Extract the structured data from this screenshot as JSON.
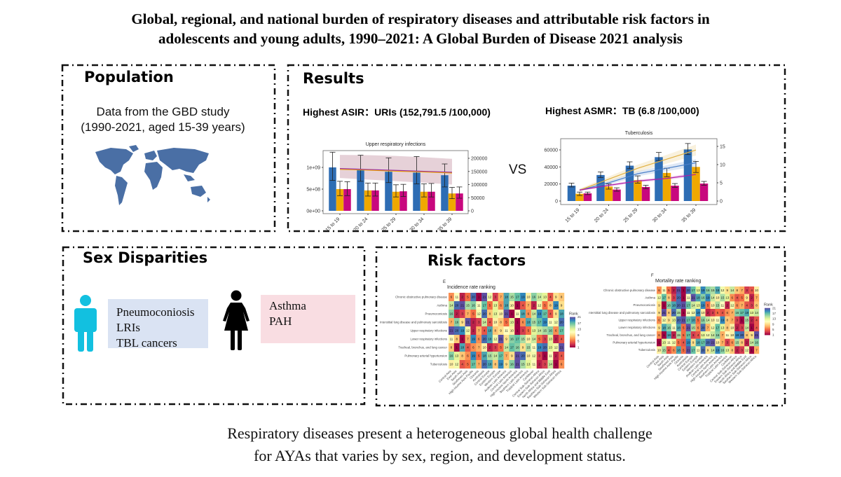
{
  "title": {
    "line1": "Global, regional, and national burden of respiratory diseases and attributable risk factors in",
    "line2": "adolescents and young adults, 1990–2021: A Global Burden of Disease 2021 analysis"
  },
  "population": {
    "heading": "Population",
    "text_line1": "Data from the GBD study",
    "text_line2": "(1990-2021, aged 15-39 years)",
    "map_icon": "world-map-icon"
  },
  "results": {
    "heading": "Results",
    "asir": "Highest ASIR：URIs (152,791.5 /100,000)",
    "asmr": "Highest ASMR：TB (6.8 /100,000)",
    "vs": "VS"
  },
  "sex": {
    "heading": "Sex Disparities",
    "male_icon": "male-person-icon",
    "female_icon": "female-person-icon",
    "male_items": [
      "Pneumoconiosis",
      "LRIs",
      "TBL cancers"
    ],
    "female_items": [
      "Asthma",
      "PAH"
    ]
  },
  "risk": {
    "heading": "Risk factors"
  },
  "conclusion": {
    "line1": "Respiratory diseases present a heterogeneous global health challenge",
    "line2": "for AYAs that varies by sex, region, and development status."
  },
  "colors": {
    "blue": "#2e6db4",
    "orange": "#f0a800",
    "magenta": "#c8087e",
    "male_box": "#dae3f3",
    "female_box": "#f9dde2",
    "male_icon": "#12c0e0",
    "map": "#4a6fa5"
  },
  "chart_data": [
    {
      "type": "bar",
      "title": "Upper respiratory infections",
      "categories": [
        "15 to 19",
        "20 to 24",
        "25 to 29",
        "30 to 34",
        "35 to 39"
      ],
      "left_ticks": [
        {
          "v": 0,
          "label": "0e+00"
        },
        {
          "v": 500000000,
          "label": "5e+08"
        },
        {
          "v": 1000000000,
          "label": "1e+09"
        }
      ],
      "right_ticks": [
        {
          "v": 0,
          "label": "0"
        },
        {
          "v": 50000,
          "label": "50000"
        },
        {
          "v": 100000,
          "label": "100000"
        },
        {
          "v": 150000,
          "label": "150000"
        },
        {
          "v": 200000,
          "label": "200000"
        }
      ],
      "series": [
        {
          "color": "#2e6db4",
          "values": [
            1000000000,
            950000000,
            900000000,
            880000000,
            820000000
          ],
          "error": [
            [
              700000000,
              1350000000
            ],
            [
              680000000,
              1280000000
            ],
            [
              650000000,
              1220000000
            ],
            [
              620000000,
              1250000000
            ],
            [
              550000000,
              1080000000
            ]
          ]
        },
        {
          "color": "#f0a800",
          "values": [
            500000000,
            470000000,
            440000000,
            440000000,
            400000000
          ],
          "error": [
            [
              350000000,
              680000000
            ],
            [
              340000000,
              640000000
            ],
            [
              320000000,
              600000000
            ],
            [
              320000000,
              620000000
            ],
            [
              280000000,
              540000000
            ]
          ]
        },
        {
          "color": "#c8087e",
          "values": [
            500000000,
            470000000,
            450000000,
            440000000,
            400000000
          ],
          "error": [
            [
              350000000,
              670000000
            ],
            [
              340000000,
              640000000
            ],
            [
              330000000,
              610000000
            ],
            [
              320000000,
              630000000
            ],
            [
              290000000,
              550000000
            ]
          ]
        }
      ],
      "lines_right_axis": [
        {
          "color": "#f0a800",
          "values": [
            158000,
            155000,
            151000,
            148000,
            144000
          ]
        },
        {
          "color": "#9b2fa0",
          "values": [
            161000,
            157500,
            154000,
            150500,
            147000
          ]
        }
      ],
      "band_right_axis": {
        "color": "#c79aa8",
        "upper": [
          213000,
          212000,
          209000,
          204000,
          198000
        ],
        "lower": [
          125000,
          119000,
          113000,
          107000,
          100000
        ]
      }
    },
    {
      "type": "bar",
      "title": "Tuberculosis",
      "categories": [
        "15 to 19",
        "20 to 24",
        "25 to 29",
        "30 to 34",
        "35 to 39"
      ],
      "left_ticks": [
        {
          "v": 0,
          "label": "0"
        },
        {
          "v": 20000,
          "label": "20000"
        },
        {
          "v": 40000,
          "label": "40000"
        },
        {
          "v": 60000,
          "label": "60000"
        }
      ],
      "right_ticks": [
        {
          "v": 0,
          "label": "0"
        },
        {
          "v": 5,
          "label": "5"
        },
        {
          "v": 10,
          "label": "10"
        },
        {
          "v": 15,
          "label": "15"
        }
      ],
      "series": [
        {
          "color": "#2e6db4",
          "values": [
            18000,
            30500,
            41500,
            51500,
            60500
          ],
          "error": [
            [
              16500,
              21000
            ],
            [
              27500,
              34000
            ],
            [
              38000,
              46000
            ],
            [
              47500,
              57000
            ],
            [
              54500,
              67500
            ]
          ]
        },
        {
          "color": "#f0a800",
          "values": [
            8500,
            17000,
            24500,
            33000,
            40000
          ],
          "error": [
            [
              6500,
              10500
            ],
            [
              14000,
              20000
            ],
            [
              21000,
              29500
            ],
            [
              28500,
              38500
            ],
            [
              33500,
              46500
            ]
          ]
        },
        {
          "color": "#c8087e",
          "values": [
            9000,
            13500,
            16500,
            18000,
            20500
          ],
          "error": [
            [
              7500,
              10500
            ],
            [
              11500,
              15500
            ],
            [
              14500,
              18500
            ],
            [
              16000,
              20500
            ],
            [
              18500,
              23000
            ]
          ]
        }
      ],
      "lines_right_axis": [
        {
          "color": "#4a7fc8",
          "values": [
            3,
            5,
            7.5,
            9,
            10.5
          ],
          "band": [
            [
              2.7,
              3.3
            ],
            [
              4.5,
              5.5
            ],
            [
              6.8,
              8.2
            ],
            [
              8.2,
              9.8
            ],
            [
              9.5,
              11.5
            ]
          ]
        },
        {
          "color": "#e0b040",
          "values": [
            3,
            6,
            9,
            11.5,
            14
          ],
          "band": [
            [
              2.6,
              3.4
            ],
            [
              5.3,
              6.7
            ],
            [
              8,
              10
            ],
            [
              10.3,
              12.7
            ],
            [
              12.5,
              15.5
            ]
          ]
        },
        {
          "color": "#b01aa8",
          "values": [
            3,
            4.3,
            5.5,
            6.2,
            7.3
          ],
          "band": [
            [
              2.8,
              3.2
            ],
            [
              4,
              4.6
            ],
            [
              5.1,
              5.9
            ],
            [
              5.8,
              6.6
            ],
            [
              6.8,
              7.8
            ]
          ]
        }
      ]
    },
    {
      "type": "heatmap",
      "panel_label": "E",
      "title": "Incidence rate ranking",
      "legend_title": "Rank",
      "legend_ticks": [
        1,
        5,
        9,
        13,
        17,
        21
      ],
      "rows": [
        "Chronic obstructive pulmonary disease",
        "Asthma",
        "Pneumoconiosis",
        "Interstitial lung disease and pulmonary sarcoidosis",
        "Upper respiratory infections",
        "Lower respiratory infections",
        "Tracheal, bronchus, and lung cancer",
        "Pulmonary arterial hypertension",
        "Tuberculosis"
      ],
      "columns": [
        "Central Asia",
        "East Asia",
        "South Asia",
        "Southeast Asia",
        "High-income Asia Pacific",
        "Oceania",
        "Australasia",
        "Central Europe",
        "Eastern Europe",
        "Western Europe",
        "Andean Latin America",
        "Central Latin America",
        "High-income North America",
        "Southern Latin America",
        "Tropical Latin America",
        "Caribbean",
        "Central Sub-Saharan Africa",
        "Eastern Sub-Saharan Africa",
        "North Africa and Middle East",
        "Southern Sub-Saharan Africa",
        "Western Sub-Saharan Africa"
      ],
      "values": [
        [
          6,
          11,
          2,
          5,
          20,
          1,
          21,
          12,
          3,
          7,
          18,
          15,
          17,
          19,
          10,
          16,
          14,
          13,
          4,
          9,
          8
        ],
        [
          14,
          20,
          21,
          15,
          16,
          11,
          17,
          5,
          13,
          6,
          18,
          10,
          1,
          4,
          7,
          2,
          12,
          5,
          8,
          19,
          9
        ],
        [
          16,
          2,
          3,
          7,
          5,
          12,
          20,
          8,
          13,
          10,
          21,
          1,
          11,
          18,
          6,
          14,
          19,
          17,
          4,
          9,
          18
        ],
        [
          7,
          16,
          9,
          21,
          2,
          3,
          14,
          4,
          10,
          8,
          5,
          13,
          1,
          6,
          18,
          15,
          17,
          19,
          11,
          12,
          20
        ],
        [
          21,
          20,
          19,
          12,
          2,
          7,
          4,
          18,
          8,
          9,
          11,
          10,
          1,
          3,
          5,
          13,
          14,
          15,
          16,
          6,
          17
        ],
        [
          11,
          8,
          1,
          7,
          19,
          6,
          20,
          18,
          12,
          21,
          9,
          16,
          17,
          15,
          10,
          14,
          5,
          3,
          13,
          2,
          4
        ],
        [
          8,
          1,
          18,
          4,
          6,
          7,
          10,
          2,
          3,
          5,
          14,
          17,
          16,
          9,
          15,
          11,
          19,
          20,
          13,
          12,
          21
        ],
        [
          16,
          13,
          8,
          6,
          19,
          5,
          18,
          15,
          14,
          17,
          7,
          9,
          21,
          20,
          10,
          12,
          3,
          1,
          11,
          2,
          4
        ],
        [
          10,
          12,
          4,
          5,
          17,
          7,
          20,
          18,
          8,
          19,
          9,
          16,
          21,
          15,
          13,
          11,
          2,
          3,
          14,
          1,
          6
        ]
      ]
    },
    {
      "type": "heatmap",
      "panel_label": "F",
      "title": "Mortality rate ranking",
      "legend_title": "Rank",
      "legend_ticks": [
        1,
        5,
        9,
        13,
        17,
        21
      ],
      "rows": [
        "Chronic obstructive pulmonary disease",
        "Asthma",
        "Pneumoconiosis",
        "Interstitial lung disease and pulmonary sarcoidosis",
        "Upper respiratory infections",
        "Lower respiratory infections",
        "Tracheal, bronchus, and lung cancer",
        "Pulmonary arterial hypertension",
        "Tuberculosis"
      ],
      "columns": [
        "Central Asia",
        "East Asia",
        "South Asia",
        "Southeast Asia",
        "High-income Asia Pacific",
        "Oceania",
        "Australasia",
        "Central Europe",
        "Eastern Europe",
        "Western Europe",
        "Andean Latin America",
        "Central Latin America",
        "High-income North America",
        "Southern Latin America",
        "Tropical Latin America",
        "Caribbean",
        "Central Sub-Saharan Africa",
        "Eastern Sub-Saharan Africa",
        "North Africa and Middle East",
        "Southern Sub-Saharan Africa",
        "Western Sub-Saharan Africa"
      ],
      "values": [
        [
          6,
          11,
          5,
          2,
          21,
          1,
          20,
          17,
          13,
          19,
          16,
          15,
          18,
          12,
          9,
          14,
          8,
          7,
          3,
          4,
          10
        ],
        [
          12,
          17,
          8,
          3,
          20,
          1,
          11,
          21,
          18,
          16,
          19,
          14,
          10,
          15,
          13,
          6,
          4,
          5,
          9,
          2,
          7
        ],
        [
          9,
          1,
          16,
          18,
          20,
          21,
          17,
          14,
          13,
          19,
          5,
          10,
          15,
          11,
          2,
          12,
          6,
          7,
          4,
          3,
          8
        ],
        [
          9,
          21,
          8,
          20,
          15,
          1,
          11,
          12,
          19,
          10,
          2,
          3,
          5,
          4,
          6,
          7,
          16,
          17,
          18,
          13,
          14
        ],
        [
          6,
          12,
          9,
          13,
          20,
          21,
          17,
          18,
          5,
          16,
          14,
          10,
          11,
          19,
          8,
          7,
          3,
          1,
          15,
          2,
          4
        ],
        [
          9,
          18,
          16,
          11,
          18,
          5,
          21,
          15,
          6,
          20,
          7,
          12,
          17,
          13,
          8,
          10,
          2,
          3,
          14,
          1,
          4
        ],
        [
          6,
          1,
          18,
          2,
          15,
          5,
          17,
          3,
          4,
          13,
          12,
          14,
          16,
          7,
          11,
          10,
          19,
          20,
          8,
          9,
          21
        ],
        [
          1,
          13,
          11,
          12,
          5,
          4,
          19,
          9,
          18,
          17,
          20,
          21,
          10,
          7,
          3,
          6,
          15,
          8,
          2,
          14,
          16
        ],
        [
          10,
          15,
          4,
          6,
          18,
          5,
          21,
          17,
          11,
          20,
          9,
          14,
          19,
          16,
          13,
          8,
          2,
          3,
          12,
          1,
          7
        ]
      ]
    }
  ]
}
